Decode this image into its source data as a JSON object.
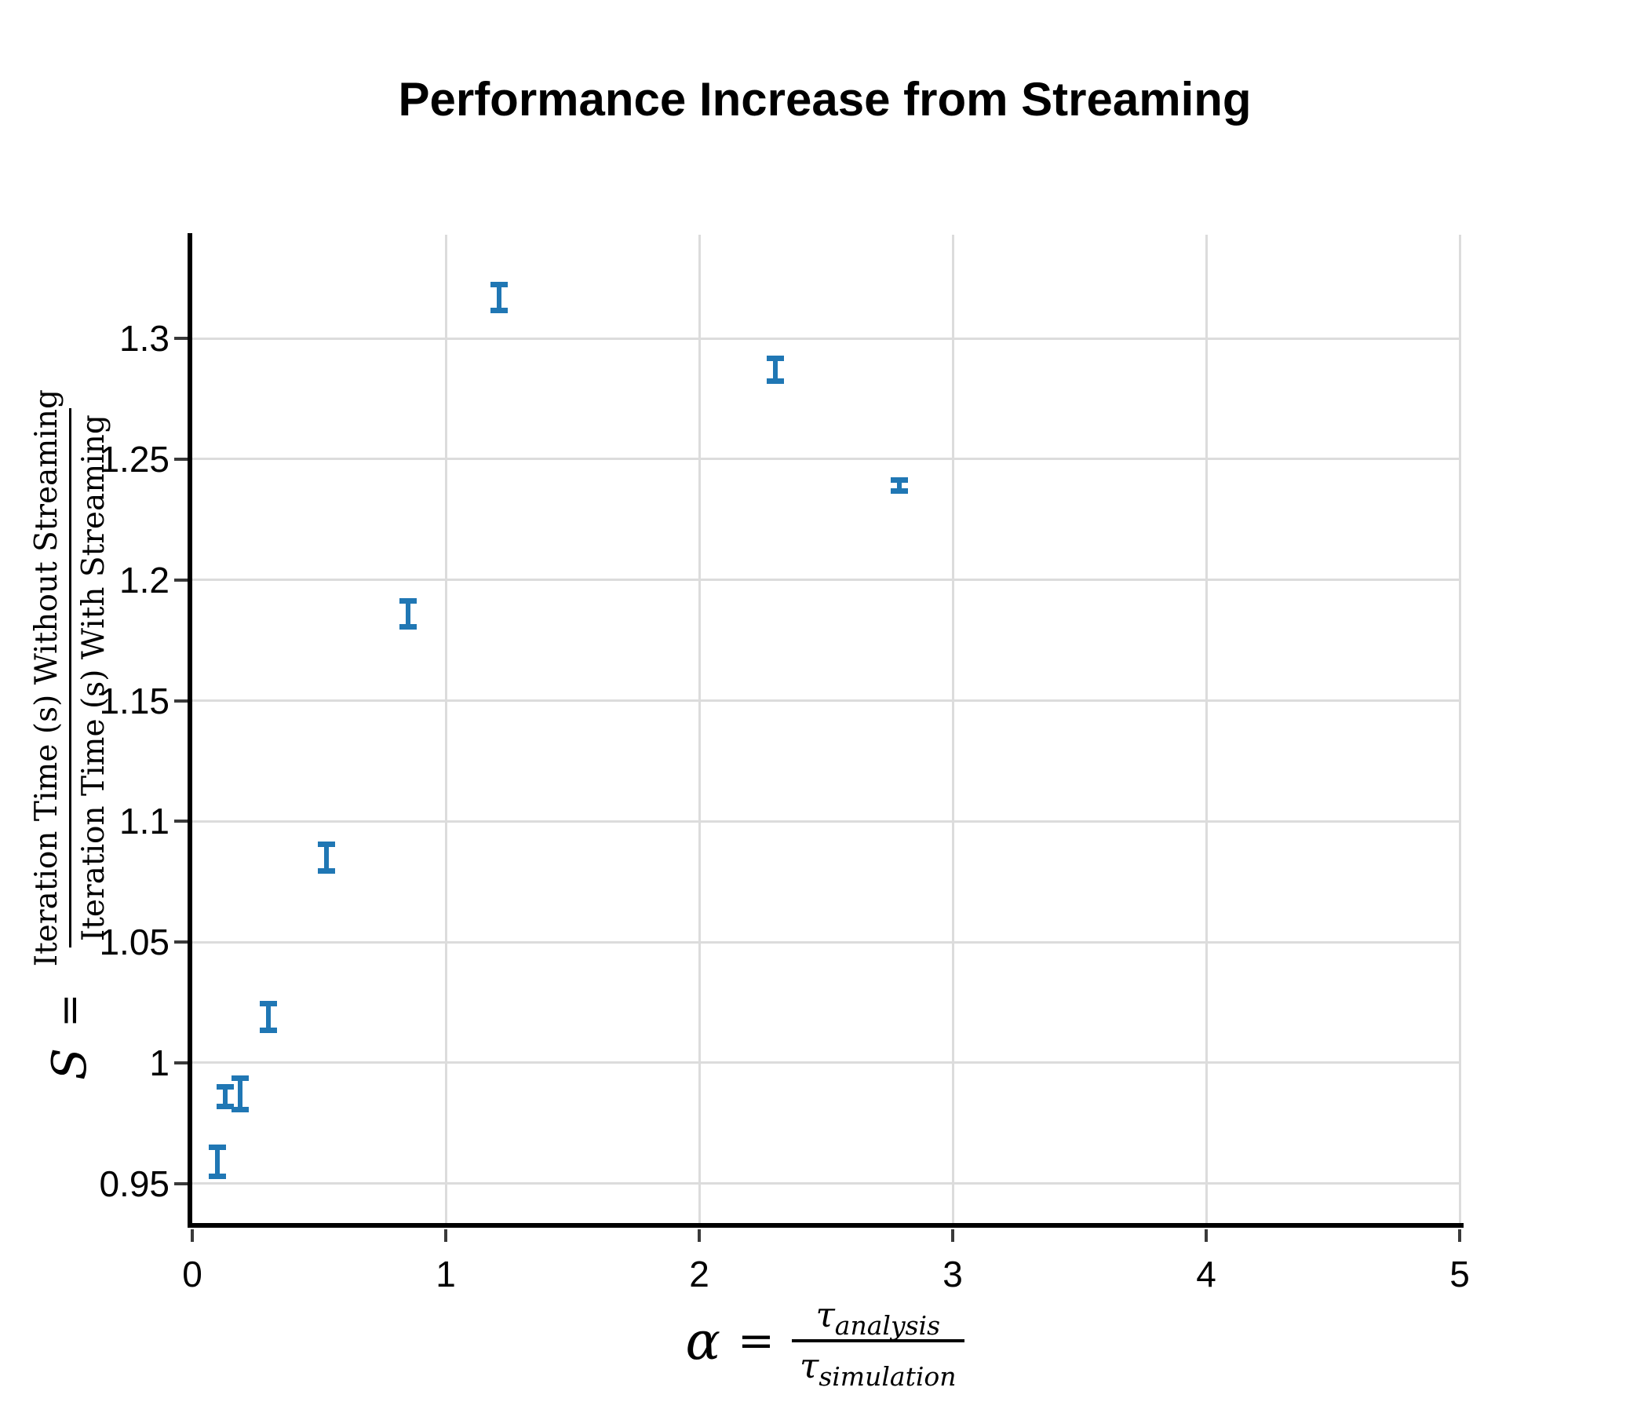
{
  "title": "Performance Increase from Streaming",
  "xlabel": {
    "lhs": "α",
    "eq": "=",
    "num_base": "τ",
    "num_sub": "analysis",
    "den_base": "τ",
    "den_sub": "simulation"
  },
  "ylabel": {
    "lhs": "S",
    "eq": "=",
    "numerator": "Iteration Time (s) Without Streaming",
    "denominator": "Iteration Time (s) With Streaming"
  },
  "chart_data": {
    "type": "scatter",
    "title": "Performance Increase from Streaming",
    "xlabel": "alpha = tau_analysis / tau_simulation",
    "ylabel": "S = Iteration Time (s) Without Streaming / Iteration Time (s) With Streaming",
    "marker": "errorbar-with-caps",
    "color": "#2077b4",
    "grid": true,
    "grid_color": "#dcdcdc",
    "legend": null,
    "xlim": [
      0,
      5
    ],
    "ylim": [
      0.933,
      1.343
    ],
    "points": [
      {
        "x": 0.1,
        "y": 0.959,
        "yerr": 0.006
      },
      {
        "x": 0.13,
        "y": 0.986,
        "yerr": 0.004
      },
      {
        "x": 0.19,
        "y": 0.987,
        "yerr": 0.0065
      },
      {
        "x": 0.3,
        "y": 1.019,
        "yerr": 0.0054
      },
      {
        "x": 0.53,
        "y": 1.085,
        "yerr": 0.0054
      },
      {
        "x": 0.85,
        "y": 1.186,
        "yerr": 0.0054
      },
      {
        "x": 1.21,
        "y": 1.317,
        "yerr": 0.0053
      },
      {
        "x": 2.3,
        "y": 1.287,
        "yerr": 0.0048
      },
      {
        "x": 2.79,
        "y": 1.239,
        "yerr": 0.0022
      }
    ],
    "xticks": [
      {
        "v": 0,
        "label": "0"
      },
      {
        "v": 1,
        "label": "1"
      },
      {
        "v": 2,
        "label": "2"
      },
      {
        "v": 3,
        "label": "3"
      },
      {
        "v": 4,
        "label": "4"
      },
      {
        "v": 5,
        "label": "5"
      }
    ],
    "yticks": [
      {
        "v": 0.95,
        "label": "0.95"
      },
      {
        "v": 1.0,
        "label": "1"
      },
      {
        "v": 1.05,
        "label": "1.05"
      },
      {
        "v": 1.1,
        "label": "1.1"
      },
      {
        "v": 1.15,
        "label": "1.15"
      },
      {
        "v": 1.2,
        "label": "1.2"
      },
      {
        "v": 1.25,
        "label": "1.25"
      },
      {
        "v": 1.3,
        "label": "1.3"
      }
    ]
  }
}
